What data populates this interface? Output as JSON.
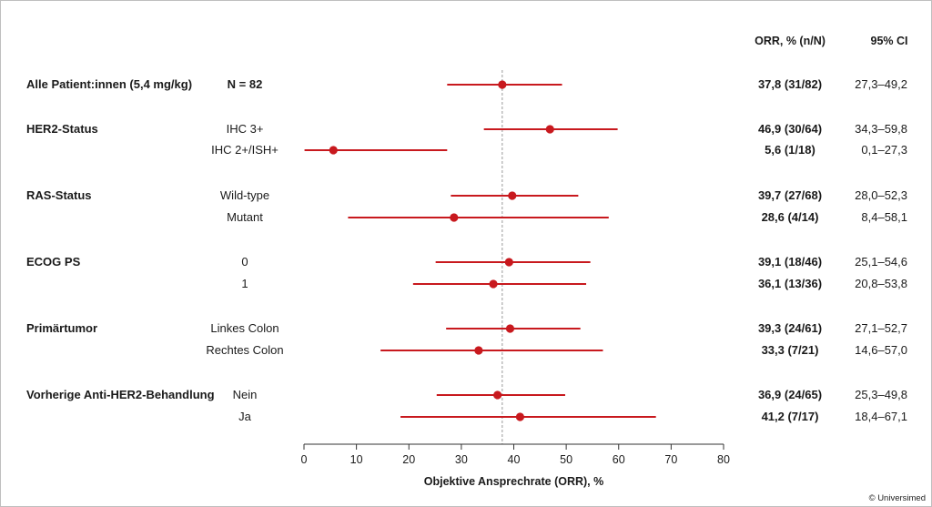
{
  "chart_data": {
    "type": "forest",
    "xlabel": "Objektive Ansprechrate (ORR), %",
    "xlim": [
      0,
      80
    ],
    "xticks": [
      0,
      10,
      20,
      30,
      40,
      50,
      60,
      70,
      80
    ],
    "reference_line": 37.8,
    "columns": {
      "orr": "ORR, % (n/N)",
      "ci": "95% CI"
    },
    "rows": [
      {
        "group": "Alle Patient:innen (5,4 mg/kg)",
        "subgroup": "N = 82",
        "orr": 37.8,
        "ci_low": 27.3,
        "ci_high": 49.2,
        "orr_text": "37,8 (31/82)",
        "ci_text": "27,3–49,2"
      },
      {
        "group": "HER2-Status",
        "subgroup": "IHC 3+",
        "orr": 46.9,
        "ci_low": 34.3,
        "ci_high": 59.8,
        "orr_text": "46,9 (30/64)",
        "ci_text": "34,3–59,8"
      },
      {
        "group": "",
        "subgroup": "IHC 2+/ISH+",
        "orr": 5.6,
        "ci_low": 0.1,
        "ci_high": 27.3,
        "orr_text": "5,6 (1/18)",
        "ci_text": "0,1–27,3"
      },
      {
        "group": "RAS-Status",
        "subgroup": "Wild-type",
        "orr": 39.7,
        "ci_low": 28.0,
        "ci_high": 52.3,
        "orr_text": "39,7 (27/68)",
        "ci_text": "28,0–52,3"
      },
      {
        "group": "",
        "subgroup": "Mutant",
        "orr": 28.6,
        "ci_low": 8.4,
        "ci_high": 58.1,
        "orr_text": "28,6 (4/14)",
        "ci_text": "8,4–58,1"
      },
      {
        "group": "ECOG PS",
        "subgroup": "0",
        "orr": 39.1,
        "ci_low": 25.1,
        "ci_high": 54.6,
        "orr_text": "39,1 (18/46)",
        "ci_text": "25,1–54,6"
      },
      {
        "group": "",
        "subgroup": "1",
        "orr": 36.1,
        "ci_low": 20.8,
        "ci_high": 53.8,
        "orr_text": "36,1 (13/36)",
        "ci_text": "20,8–53,8"
      },
      {
        "group": "Primärtumor",
        "subgroup": "Linkes Colon",
        "orr": 39.3,
        "ci_low": 27.1,
        "ci_high": 52.7,
        "orr_text": "39,3 (24/61)",
        "ci_text": "27,1–52,7"
      },
      {
        "group": "",
        "subgroup": "Rechtes Colon",
        "orr": 33.3,
        "ci_low": 14.6,
        "ci_high": 57.0,
        "orr_text": "33,3 (7/21)",
        "ci_text": "14,6–57,0"
      },
      {
        "group": "Vorherige Anti-HER2-Behandlung",
        "subgroup": "Nein",
        "orr": 36.9,
        "ci_low": 25.3,
        "ci_high": 49.8,
        "orr_text": "36,9 (24/65)",
        "ci_text": "25,3–49,8"
      },
      {
        "group": "",
        "subgroup": "Ja",
        "orr": 41.2,
        "ci_low": 18.4,
        "ci_high": 67.1,
        "orr_text": "41,2 (7/17)",
        "ci_text": "18,4–67,1"
      }
    ]
  },
  "colors": {
    "marker": "#c8191e",
    "axis": "#333333",
    "reference": "#9a9a9a",
    "text": "#1a1a1a"
  },
  "copyright": "© Universimed"
}
